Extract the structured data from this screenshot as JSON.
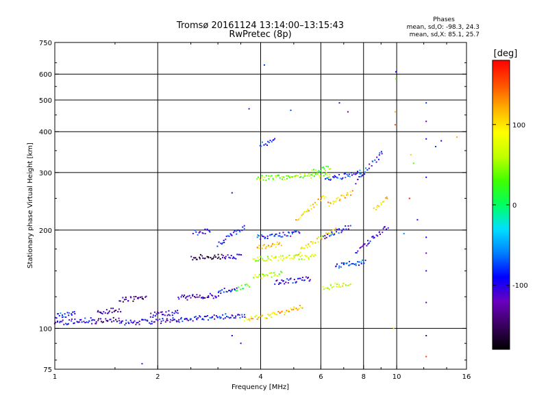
{
  "chart_data": {
    "type": "scatter",
    "title": "Tromsø 20161124 13:14:00–13:15:43",
    "subtitle": "RwPretec (8p)",
    "xlabel": "Frequency [MHz]",
    "ylabel": "Stationary phase Virtual Height [km]",
    "x_scale": "log",
    "y_scale": "log",
    "xlim": [
      1,
      16
    ],
    "ylim": [
      75,
      750
    ],
    "x_ticks": [
      "1",
      "2",
      "4",
      "6",
      "8",
      "10",
      "16"
    ],
    "y_ticks": [
      "75",
      "100",
      "200",
      "300",
      "400",
      "500",
      "600",
      "750"
    ],
    "x_gridlines": [
      2,
      4,
      6,
      8,
      10
    ],
    "y_gridlines": [
      100,
      200,
      300,
      400,
      500,
      600
    ],
    "grid": true,
    "phase_info": {
      "heading": "Phases",
      "line_o": "mean, sd,O: -98.3, 24.3",
      "line_x": "mean, sd,X:  85.1, 25.7"
    },
    "colorbar": {
      "label": "[deg]",
      "range": [
        -180,
        180
      ],
      "ticks": [
        "100",
        "0",
        "-100"
      ],
      "tick_values": [
        100,
        0,
        -100
      ],
      "colors": [
        "#000000",
        "#3a0060",
        "#6a00c0",
        "#0000ff",
        "#0080ff",
        "#00e0ff",
        "#00ff60",
        "#40ff00",
        "#c0ff00",
        "#ffff00",
        "#ffb000",
        "#ff5000",
        "#ff0000"
      ]
    },
    "traces": [
      {
        "x0": 1.0,
        "x1": 1.28,
        "h0": 104,
        "h1": 106,
        "ph": -100
      },
      {
        "x0": 1.0,
        "x1": 1.15,
        "h0": 109,
        "h1": 111,
        "ph": -85
      },
      {
        "x0": 1.28,
        "x1": 1.55,
        "h0": 105,
        "h1": 107,
        "ph": -130
      },
      {
        "x0": 1.33,
        "x1": 1.55,
        "h0": 112,
        "h1": 114,
        "ph": -125
      },
      {
        "x0": 1.55,
        "x1": 2.3,
        "h0": 104,
        "h1": 106,
        "ph": -105
      },
      {
        "x0": 1.55,
        "x1": 1.85,
        "h0": 122,
        "h1": 124,
        "ph": -140
      },
      {
        "x0": 1.9,
        "x1": 2.3,
        "h0": 110,
        "h1": 112,
        "ph": -100
      },
      {
        "x0": 2.3,
        "x1": 3.6,
        "h0": 106,
        "h1": 110,
        "ph": -95
      },
      {
        "x0": 2.3,
        "x1": 3.0,
        "h0": 124,
        "h1": 126,
        "ph": -125
      },
      {
        "x0": 3.0,
        "x1": 3.4,
        "h0": 129,
        "h1": 133,
        "ph": -100
      },
      {
        "x0": 3.4,
        "x1": 3.7,
        "h0": 132,
        "h1": 136,
        "ph": 20
      },
      {
        "x0": 2.5,
        "x1": 3.1,
        "h0": 165,
        "h1": 166,
        "ph": -150
      },
      {
        "x0": 3.1,
        "x1": 3.5,
        "h0": 165,
        "h1": 166,
        "ph": -110
      },
      {
        "x0": 2.55,
        "x1": 2.85,
        "h0": 196,
        "h1": 199,
        "ph": -95
      },
      {
        "x0": 3.0,
        "x1": 3.6,
        "h0": 180,
        "h1": 205,
        "ph": -85
      },
      {
        "x0": 3.6,
        "x1": 4.4,
        "h0": 107,
        "h1": 110,
        "ph": 100
      },
      {
        "x0": 3.8,
        "x1": 4.6,
        "h0": 143,
        "h1": 147,
        "ph": 60
      },
      {
        "x0": 3.8,
        "x1": 5.8,
        "h0": 163,
        "h1": 166,
        "ph": 70
      },
      {
        "x0": 3.9,
        "x1": 4.6,
        "h0": 176,
        "h1": 181,
        "ph": 110
      },
      {
        "x0": 3.9,
        "x1": 5.2,
        "h0": 190,
        "h1": 196,
        "ph": -90
      },
      {
        "x0": 4.0,
        "x1": 4.4,
        "h0": 365,
        "h1": 375,
        "ph": -80
      },
      {
        "x0": 3.9,
        "x1": 6.4,
        "h0": 288,
        "h1": 295,
        "ph": 50
      },
      {
        "x0": 4.4,
        "x1": 5.3,
        "h0": 110,
        "h1": 116,
        "ph": 120
      },
      {
        "x0": 4.4,
        "x1": 5.6,
        "h0": 138,
        "h1": 142,
        "ph": -100
      },
      {
        "x0": 5.1,
        "x1": 6.2,
        "h0": 215,
        "h1": 255,
        "ph": 100
      },
      {
        "x0": 5.1,
        "x1": 6.6,
        "h0": 170,
        "h1": 200,
        "ph": 90
      },
      {
        "x0": 5.6,
        "x1": 6.4,
        "h0": 300,
        "h1": 310,
        "ph": 40
      },
      {
        "x0": 6.1,
        "x1": 7.3,
        "h0": 190,
        "h1": 205,
        "ph": -95
      },
      {
        "x0": 6.2,
        "x1": 7.9,
        "h0": 285,
        "h1": 300,
        "ph": -80
      },
      {
        "x0": 6.1,
        "x1": 7.3,
        "h0": 133,
        "h1": 138,
        "ph": 80
      },
      {
        "x0": 6.6,
        "x1": 8.1,
        "h0": 155,
        "h1": 160,
        "ph": -80
      },
      {
        "x0": 6.3,
        "x1": 7.4,
        "h0": 240,
        "h1": 260,
        "ph": 110
      },
      {
        "x0": 7.6,
        "x1": 9.4,
        "h0": 170,
        "h1": 205,
        "ph": -110
      },
      {
        "x0": 8.6,
        "x1": 9.4,
        "h0": 230,
        "h1": 250,
        "ph": 100
      },
      {
        "x0": 7.6,
        "x1": 9.1,
        "h0": 280,
        "h1": 345,
        "ph": -90
      }
    ],
    "scatter_points": [
      {
        "x": 3.7,
        "y": 470,
        "ph": -110
      },
      {
        "x": 4.1,
        "y": 640,
        "ph": -80
      },
      {
        "x": 4.9,
        "y": 465,
        "ph": -70
      },
      {
        "x": 6.8,
        "y": 490,
        "ph": -85
      },
      {
        "x": 7.2,
        "y": 460,
        "ph": -120
      },
      {
        "x": 9.95,
        "y": 610,
        "ph": -90
      },
      {
        "x": 9.95,
        "y": 580,
        "ph": 40
      },
      {
        "x": 9.9,
        "y": 460,
        "ph": 120
      },
      {
        "x": 9.9,
        "y": 420,
        "ph": 150
      },
      {
        "x": 12.2,
        "y": 490,
        "ph": -80
      },
      {
        "x": 12.2,
        "y": 430,
        "ph": -130
      },
      {
        "x": 12.2,
        "y": 380,
        "ph": -100
      },
      {
        "x": 12.2,
        "y": 290,
        "ph": -95
      },
      {
        "x": 12.2,
        "y": 190,
        "ph": -90
      },
      {
        "x": 12.2,
        "y": 170,
        "ph": -120
      },
      {
        "x": 12.2,
        "y": 150,
        "ph": -100
      },
      {
        "x": 12.2,
        "y": 120,
        "ph": -130
      },
      {
        "x": 12.2,
        "y": 95,
        "ph": -150
      },
      {
        "x": 12.2,
        "y": 82,
        "ph": 160
      },
      {
        "x": 11.0,
        "y": 340,
        "ph": 110
      },
      {
        "x": 11.2,
        "y": 320,
        "ph": 30
      },
      {
        "x": 13.0,
        "y": 360,
        "ph": -80
      },
      {
        "x": 13.5,
        "y": 375,
        "ph": -90
      },
      {
        "x": 15.0,
        "y": 385,
        "ph": 120
      },
      {
        "x": 10.9,
        "y": 250,
        "ph": 170
      },
      {
        "x": 3.3,
        "y": 260,
        "ph": -140
      },
      {
        "x": 3.3,
        "y": 95,
        "ph": -90
      },
      {
        "x": 3.5,
        "y": 90,
        "ph": -85
      },
      {
        "x": 1.8,
        "y": 78,
        "ph": -80
      },
      {
        "x": 10.5,
        "y": 195,
        "ph": -60
      },
      {
        "x": 9.8,
        "y": 100,
        "ph": 110
      },
      {
        "x": 11.5,
        "y": 215,
        "ph": -100
      }
    ]
  }
}
